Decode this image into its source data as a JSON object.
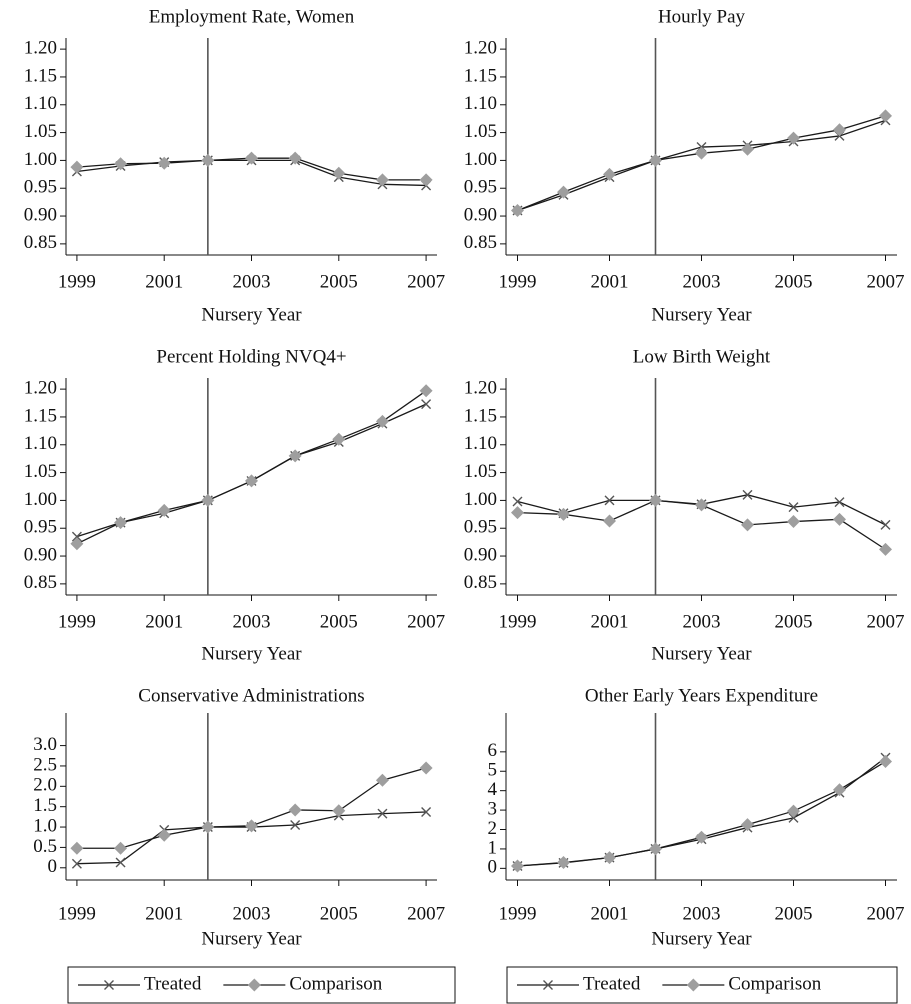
{
  "chart_data": [
    {
      "type": "line",
      "title": "Employment Rate, Women",
      "xlabel": "Nursery Year",
      "x": [
        1999,
        2000,
        2001,
        2002,
        2003,
        2004,
        2005,
        2006,
        2007
      ],
      "xlim": [
        1998.75,
        2007.25
      ],
      "xticks": [
        1999,
        2001,
        2003,
        2005,
        2007
      ],
      "ylim": [
        0.83,
        1.22
      ],
      "yticks": [
        0.85,
        {
          "value": 0.9,
          "label": "0.90"
        },
        0.95,
        {
          "value": 1,
          "label": "1.00"
        },
        1.05,
        {
          "value": 1.1,
          "label": "1.10"
        },
        1.15,
        {
          "value": 1.2,
          "label": "1.20"
        }
      ],
      "vline": 2002,
      "series": [
        {
          "name": "Treated",
          "color": "#1a1a1a",
          "marker": "x",
          "marker_color": "#555555",
          "values": [
            0.98,
            0.99,
            0.997,
            1.0,
            1.0,
            1.0,
            0.97,
            0.957,
            0.955
          ]
        },
        {
          "name": "Comparison",
          "color": "#1a1a1a",
          "marker": "diamond",
          "marker_color": "#9e9e9e",
          "values": [
            0.988,
            0.994,
            0.995,
            1.0,
            1.004,
            1.004,
            0.977,
            0.965,
            0.965
          ]
        }
      ]
    },
    {
      "type": "line",
      "title": "Hourly Pay",
      "xlabel": "Nursery Year",
      "x": [
        1999,
        2000,
        2001,
        2002,
        2003,
        2004,
        2005,
        2006,
        2007
      ],
      "xlim": [
        1998.75,
        2007.25
      ],
      "xticks": [
        1999,
        2001,
        2003,
        2005,
        2007
      ],
      "ylim": [
        0.83,
        1.22
      ],
      "yticks": [
        0.85,
        {
          "value": 0.9,
          "label": "0.90"
        },
        0.95,
        {
          "value": 1,
          "label": "1.00"
        },
        1.05,
        {
          "value": 1.1,
          "label": "1.10"
        },
        1.15,
        {
          "value": 1.2,
          "label": "1.20"
        }
      ],
      "vline": 2002,
      "series": [
        {
          "name": "Treated",
          "color": "#1a1a1a",
          "marker": "x",
          "marker_color": "#555555",
          "values": [
            0.91,
            0.938,
            0.97,
            1.0,
            1.024,
            1.027,
            1.034,
            1.044,
            1.072
          ]
        },
        {
          "name": "Comparison",
          "color": "#1a1a1a",
          "marker": "diamond",
          "marker_color": "#9e9e9e",
          "values": [
            0.91,
            0.943,
            0.975,
            1.0,
            1.013,
            1.02,
            1.04,
            1.055,
            1.08
          ]
        }
      ]
    },
    {
      "type": "line",
      "title": "Percent Holding NVQ4+",
      "xlabel": "Nursery Year",
      "x": [
        1999,
        2000,
        2001,
        2002,
        2003,
        2004,
        2005,
        2006,
        2007
      ],
      "xlim": [
        1998.75,
        2007.25
      ],
      "xticks": [
        1999,
        2001,
        2003,
        2005,
        2007
      ],
      "ylim": [
        0.83,
        1.22
      ],
      "yticks": [
        0.85,
        {
          "value": 0.9,
          "label": "0.90"
        },
        0.95,
        {
          "value": 1,
          "label": "1.00"
        },
        1.05,
        {
          "value": 1.1,
          "label": "1.10"
        },
        1.15,
        {
          "value": 1.2,
          "label": "1.20"
        }
      ],
      "vline": 2002,
      "series": [
        {
          "name": "Treated",
          "color": "#1a1a1a",
          "marker": "x",
          "marker_color": "#555555",
          "values": [
            0.935,
            0.96,
            0.977,
            1.0,
            1.035,
            1.08,
            1.105,
            1.138,
            1.173
          ]
        },
        {
          "name": "Comparison",
          "color": "#1a1a1a",
          "marker": "diamond",
          "marker_color": "#9e9e9e",
          "values": [
            0.922,
            0.96,
            0.982,
            1.0,
            1.035,
            1.08,
            1.11,
            1.142,
            1.197
          ]
        }
      ]
    },
    {
      "type": "line",
      "title": "Low Birth Weight",
      "xlabel": "Nursery Year",
      "x": [
        1999,
        2000,
        2001,
        2002,
        2003,
        2004,
        2005,
        2006,
        2007
      ],
      "xlim": [
        1998.75,
        2007.25
      ],
      "xticks": [
        1999,
        2001,
        2003,
        2005,
        2007
      ],
      "ylim": [
        0.83,
        1.22
      ],
      "yticks": [
        0.85,
        {
          "value": 0.9,
          "label": "0.90"
        },
        0.95,
        {
          "value": 1,
          "label": "1.00"
        },
        1.05,
        {
          "value": 1.1,
          "label": "1.10"
        },
        1.15,
        {
          "value": 1.2,
          "label": "1.20"
        }
      ],
      "vline": 2002,
      "series": [
        {
          "name": "Treated",
          "color": "#1a1a1a",
          "marker": "x",
          "marker_color": "#555555",
          "values": [
            0.998,
            0.977,
            1.0,
            1.0,
            0.993,
            1.01,
            0.988,
            0.997,
            0.956
          ]
        },
        {
          "name": "Comparison",
          "color": "#1a1a1a",
          "marker": "diamond",
          "marker_color": "#9e9e9e",
          "values": [
            0.978,
            0.975,
            0.963,
            1.0,
            0.992,
            0.956,
            0.962,
            0.966,
            0.912
          ]
        }
      ]
    },
    {
      "type": "line",
      "title": "Conservative Administrations",
      "xlabel": "Nursery Year",
      "x": [
        1999,
        2000,
        2001,
        2002,
        2003,
        2004,
        2005,
        2006,
        2007
      ],
      "xlim": [
        1998.75,
        2007.25
      ],
      "xticks": [
        1999,
        2001,
        2003,
        2005,
        2007
      ],
      "ylim": [
        -0.3,
        3.8
      ],
      "yticks": [
        0,
        0.5,
        {
          "value": 1,
          "label": "1.0"
        },
        1.5,
        {
          "value": 2,
          "label": "2.0"
        },
        2.5,
        {
          "value": 3,
          "label": "3.0"
        }
      ],
      "vline": 2002,
      "series": [
        {
          "name": "Treated",
          "color": "#1a1a1a",
          "marker": "x",
          "marker_color": "#555555",
          "values": [
            0.1,
            0.13,
            0.93,
            1.0,
            1.0,
            1.05,
            1.28,
            1.33,
            1.37
          ]
        },
        {
          "name": "Comparison",
          "color": "#1a1a1a",
          "marker": "diamond",
          "marker_color": "#9e9e9e",
          "values": [
            0.48,
            0.48,
            0.8,
            1.0,
            1.03,
            1.42,
            1.4,
            2.15,
            2.45
          ]
        }
      ]
    },
    {
      "type": "line",
      "title": "Other Early Years Expenditure",
      "xlabel": "Nursery Year",
      "x": [
        1999,
        2000,
        2001,
        2002,
        2003,
        2004,
        2005,
        2006,
        2007
      ],
      "xlim": [
        1998.75,
        2007.25
      ],
      "xticks": [
        1999,
        2001,
        2003,
        2005,
        2007
      ],
      "ylim": [
        -0.6,
        8
      ],
      "yticks": [
        0,
        1,
        2,
        3,
        4,
        5,
        6
      ],
      "vline": 2002,
      "series": [
        {
          "name": "Treated",
          "color": "#1a1a1a",
          "marker": "x",
          "marker_color": "#555555",
          "values": [
            0.12,
            0.28,
            0.55,
            1.0,
            1.5,
            2.1,
            2.6,
            3.9,
            5.7
          ]
        },
        {
          "name": "Comparison",
          "color": "#1a1a1a",
          "marker": "diamond",
          "marker_color": "#9e9e9e",
          "values": [
            0.12,
            0.3,
            0.55,
            1.0,
            1.6,
            2.25,
            2.95,
            4.05,
            5.5
          ]
        }
      ]
    }
  ]
}
